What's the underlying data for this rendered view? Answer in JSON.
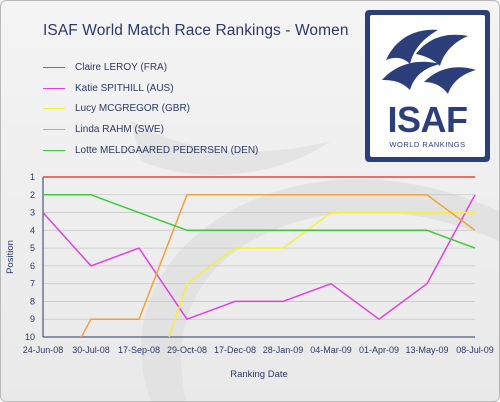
{
  "title": "ISAF World Match Race Rankings - Women",
  "logo": {
    "word": "ISAF",
    "subtitle": "WORLD RANKINGS",
    "color": "#2d3f7a"
  },
  "chart_data": {
    "type": "line",
    "title": "ISAF World Match Race Rankings - Women",
    "xlabel": "Ranking Date",
    "ylabel": "Position",
    "categories": [
      "24-Jun-08",
      "30-Jul-08",
      "17-Sep-08",
      "29-Oct-08",
      "17-Dec-08",
      "28-Jan-09",
      "04-Mar-09",
      "01-Apr-09",
      "13-May-09",
      "08-Jul-09"
    ],
    "ylim": [
      1,
      10
    ],
    "y_inverted": true,
    "y_ticks": [
      1,
      2,
      3,
      4,
      5,
      6,
      7,
      8,
      9,
      10
    ],
    "grid": "horizontal",
    "legend_position": "top-left",
    "series": [
      {
        "name": "Claire LEROY (FRA)",
        "color": "#e8463c",
        "values": [
          1,
          1,
          1,
          1,
          1,
          1,
          1,
          1,
          1,
          1
        ]
      },
      {
        "name": "Katie SPITHILL (AUS)",
        "color": "#e040e0",
        "values": [
          3,
          6,
          5,
          9,
          8,
          8,
          7,
          9,
          7,
          2
        ]
      },
      {
        "name": "Lucy MCGREGOR (GBR)",
        "color": "#f5f03c",
        "values": [
          null,
          null,
          null,
          7,
          5,
          5,
          3,
          3,
          3,
          3
        ]
      },
      {
        "name": "Linda RAHM (SWE)",
        "color": "#f0a23a",
        "values": [
          null,
          9,
          9,
          2,
          2,
          2,
          2,
          2,
          2,
          4
        ]
      },
      {
        "name": "Lotte MELDGAARED PEDERSEN (DEN)",
        "color": "#3ec83a",
        "values": [
          2,
          2,
          3,
          4,
          4,
          4,
          4,
          4,
          4,
          5
        ]
      }
    ]
  }
}
